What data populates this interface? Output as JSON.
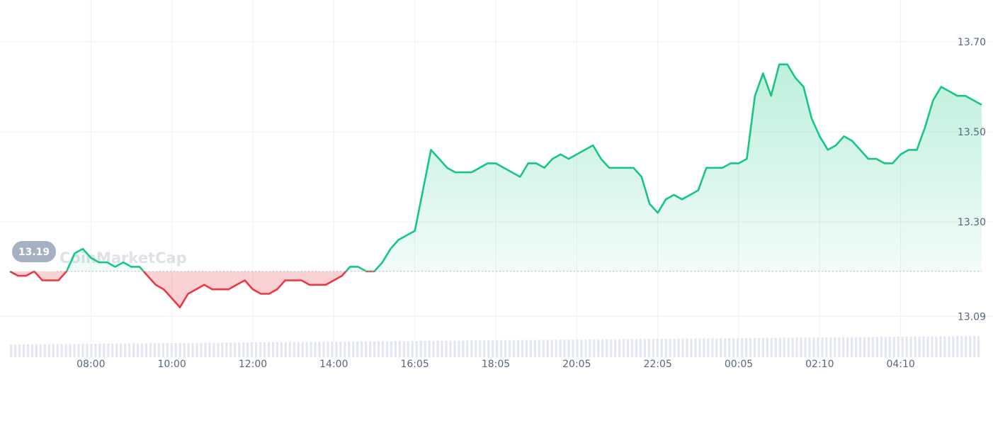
{
  "chart_data": {
    "type": "area",
    "title": "",
    "xlabel": "",
    "ylabel": "",
    "x_tick_labels": [
      "08:00",
      "10:00",
      "12:00",
      "14:00",
      "16:05",
      "18:05",
      "20:05",
      "22:05",
      "00:05",
      "02:10",
      "04:10"
    ],
    "y_tick_labels": [
      "13.70",
      "13.50",
      "13.30",
      "13.09"
    ],
    "y_ticks": [
      13.7,
      13.5,
      13.3,
      13.09
    ],
    "ylim": [
      13.04,
      13.73
    ],
    "baseline": 13.19,
    "baseline_label": "13.19",
    "watermark": "CoinMarketCap",
    "grid": true,
    "colors": {
      "up": "#16c784",
      "down": "#ea3943",
      "grid": "#eef0f4",
      "axis_text": "#58667e",
      "badge": "#a6b0c3",
      "volume": "#e4e7f1"
    },
    "x_index_range": [
      0,
      120
    ],
    "x_tick_index": [
      10,
      20,
      30,
      40,
      50,
      60,
      70,
      80,
      90,
      100,
      110
    ],
    "values": [
      13.19,
      13.18,
      13.18,
      13.19,
      13.17,
      13.17,
      13.17,
      13.19,
      13.23,
      13.24,
      13.22,
      13.21,
      13.21,
      13.2,
      13.21,
      13.2,
      13.2,
      13.18,
      13.16,
      13.15,
      13.13,
      13.11,
      13.14,
      13.15,
      13.16,
      13.15,
      13.15,
      13.15,
      13.16,
      13.17,
      13.15,
      13.14,
      13.14,
      13.15,
      13.17,
      13.17,
      13.17,
      13.16,
      13.16,
      13.16,
      13.17,
      13.18,
      13.2,
      13.2,
      13.19,
      13.19,
      13.21,
      13.24,
      13.26,
      13.27,
      13.28,
      13.37,
      13.46,
      13.44,
      13.42,
      13.41,
      13.41,
      13.41,
      13.42,
      13.43,
      13.43,
      13.42,
      13.41,
      13.4,
      13.43,
      13.43,
      13.42,
      13.44,
      13.45,
      13.44,
      13.45,
      13.46,
      13.47,
      13.44,
      13.42,
      13.42,
      13.42,
      13.42,
      13.4,
      13.34,
      13.32,
      13.35,
      13.36,
      13.35,
      13.36,
      13.37,
      13.42,
      13.42,
      13.42,
      13.43,
      13.43,
      13.44,
      13.58,
      13.63,
      13.58,
      13.65,
      13.65,
      13.62,
      13.6,
      13.53,
      13.49,
      13.46,
      13.47,
      13.49,
      13.48,
      13.46,
      13.44,
      13.44,
      13.43,
      13.43,
      13.45,
      13.46,
      13.46,
      13.51,
      13.57,
      13.6,
      13.59,
      13.58,
      13.58,
      13.57,
      13.56
    ]
  }
}
